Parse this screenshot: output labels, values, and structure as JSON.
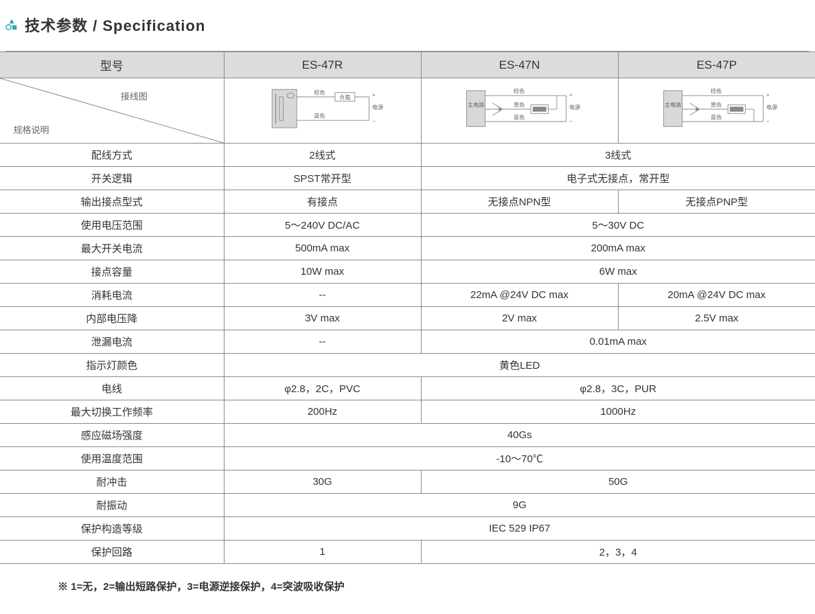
{
  "title": "技术参数 / Specification",
  "icon_color": "#2baab0",
  "header": {
    "model": "型号",
    "wiring": "接线图",
    "spec_desc": "规格说明",
    "models": [
      "ES-47R",
      "ES-47N",
      "ES-47P"
    ]
  },
  "wiring_labels": {
    "brown": "棕色",
    "blue": "蓝色",
    "black": "黑色",
    "load": "负载",
    "power": "电源",
    "main": "主电路"
  },
  "rows": [
    {
      "label": "配线方式",
      "c1": "2线式",
      "c23": "3线式"
    },
    {
      "label": "开关逻辑",
      "c1": "SPST常开型",
      "c23": "电子式无接点，常开型"
    },
    {
      "label": "输出接点型式",
      "c1": "有接点",
      "c2": "无接点NPN型",
      "c3": "无接点PNP型"
    },
    {
      "label": "使用电压范围",
      "c1": "5～240V DC/AC",
      "c23": "5～30V DC"
    },
    {
      "label": "最大开关电流",
      "c1": "500mA max",
      "c23": "200mA max"
    },
    {
      "label": "接点容量",
      "c1": "10W max",
      "c23": "6W max"
    },
    {
      "label": "消耗电流",
      "c1": "--",
      "c2": "22mA @24V DC max",
      "c3": "20mA @24V DC max"
    },
    {
      "label": "内部电压降",
      "c1": "3V max",
      "c2": "2V max",
      "c3": "2.5V max"
    },
    {
      "label": "泄漏电流",
      "c1": "--",
      "c23": "0.01mA max"
    },
    {
      "label": "指示灯颜色",
      "all": "黄色LED"
    },
    {
      "label": "电线",
      "c1": "φ2.8，2C，PVC",
      "c23": "φ2.8，3C，PUR"
    },
    {
      "label": "最大切换工作频率",
      "c1": "200Hz",
      "c23": "1000Hz"
    },
    {
      "label": "感应磁场强度",
      "all": "40Gs"
    },
    {
      "label": "使用温度范围",
      "all": "-10～70℃"
    },
    {
      "label": "耐冲击",
      "c1": "30G",
      "c23": "50G"
    },
    {
      "label": "耐振动",
      "all": "9G"
    },
    {
      "label": "保护构造等级",
      "all": "IEC 529 IP67"
    },
    {
      "label": "保护回路",
      "c1": "1",
      "c23": "2，3，4"
    }
  ],
  "footnote": "※ 1=无，2=输出短路保护，3=电源逆接保护，4=突波吸收保护",
  "colors": {
    "border": "#8a8a8a",
    "header_bg": "#dcdcdc",
    "text": "#333333",
    "diagram_stroke": "#888888",
    "diagram_fill": "#d8d8d8"
  }
}
